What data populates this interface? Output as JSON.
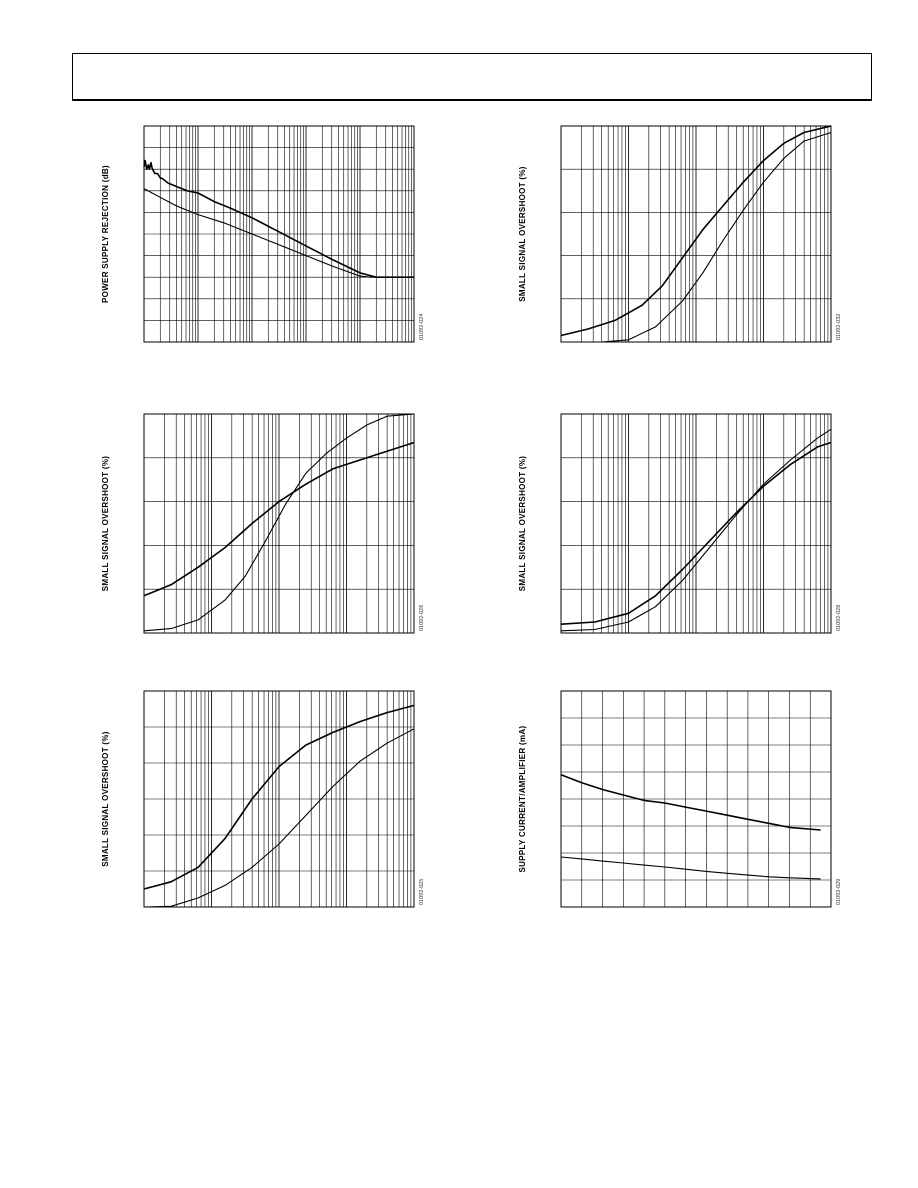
{
  "chart_data": [
    {
      "id": "psrr",
      "type": "line",
      "ylabel": "POWER SUPPLY REJECTION (dB)",
      "code": "01092-024",
      "x_scale": "log",
      "xlim": [
        0,
        5
      ],
      "ylim": [
        0,
        10
      ],
      "grid": true,
      "series": [
        {
          "x": [
            0,
            0.02,
            0.05,
            0.08,
            0.1,
            0.13,
            0.15,
            0.18,
            0.2,
            0.25,
            0.3,
            0.35,
            0.4,
            0.45,
            0.5,
            0.6,
            0.7,
            0.8,
            1.0,
            1.3,
            1.6,
            2.0,
            2.5,
            3.0,
            3.5,
            4.0,
            4.3,
            4.6,
            5.0
          ],
          "y": [
            8.1,
            8.4,
            8.0,
            8.2,
            8.0,
            8.3,
            8.05,
            7.9,
            7.8,
            7.8,
            7.6,
            7.55,
            7.45,
            7.35,
            7.3,
            7.2,
            7.1,
            7.0,
            6.9,
            6.5,
            6.2,
            5.75,
            5.1,
            4.45,
            3.8,
            3.2,
            3.0,
            3.0,
            3.0
          ]
        },
        {
          "x": [
            0,
            0.3,
            0.6,
            1.0,
            1.5,
            2.0,
            2.5,
            3.0,
            3.5,
            4.0,
            4.2,
            4.5,
            5.0
          ],
          "y": [
            7.1,
            6.7,
            6.3,
            5.9,
            5.5,
            5.0,
            4.5,
            4.0,
            3.5,
            3.05,
            3.0,
            3.0,
            3.0
          ]
        }
      ]
    },
    {
      "id": "overshoot-1",
      "type": "line",
      "ylabel": "SMALL SIGNAL OVERSHOOT (%)",
      "code": "01092-032",
      "x_scale": "log",
      "xlim": [
        0,
        4
      ],
      "ylim": [
        0,
        5
      ],
      "grid": true,
      "series": [
        {
          "x": [
            0,
            0.4,
            0.8,
            1.2,
            1.5,
            1.8,
            2.1,
            2.4,
            2.7,
            3.0,
            3.3,
            3.6,
            4.0
          ],
          "y": [
            0.15,
            0.3,
            0.5,
            0.85,
            1.3,
            1.95,
            2.6,
            3.15,
            3.7,
            4.2,
            4.6,
            4.85,
            5.0
          ]
        },
        {
          "x": [
            0,
            0.6,
            1.0,
            1.4,
            1.8,
            2.1,
            2.4,
            2.7,
            3.0,
            3.3,
            3.6,
            4.0
          ],
          "y": [
            0,
            0.0,
            0.05,
            0.35,
            0.95,
            1.6,
            2.35,
            3.05,
            3.7,
            4.25,
            4.65,
            4.85
          ]
        }
      ]
    },
    {
      "id": "overshoot-2",
      "type": "line",
      "ylabel": "SMALL SIGNAL OVERSHOOT (%)",
      "code": "01092-026",
      "x_scale": "log",
      "xlim": [
        0,
        4
      ],
      "ylim": [
        0,
        5
      ],
      "grid": true,
      "series": [
        {
          "x": [
            0,
            0.4,
            0.8,
            1.2,
            1.6,
            2.0,
            2.4,
            2.8,
            3.2,
            3.6,
            4.0
          ],
          "y": [
            0.85,
            1.1,
            1.5,
            1.95,
            2.5,
            3.0,
            3.4,
            3.75,
            3.95,
            4.15,
            4.35
          ]
        },
        {
          "x": [
            0,
            0.4,
            0.8,
            1.2,
            1.5,
            1.8,
            2.1,
            2.4,
            2.7,
            3.0,
            3.3,
            3.6,
            4.0
          ],
          "y": [
            0.05,
            0.1,
            0.3,
            0.75,
            1.3,
            2.1,
            2.95,
            3.65,
            4.1,
            4.45,
            4.75,
            4.95,
            5.0
          ]
        }
      ]
    },
    {
      "id": "overshoot-3",
      "type": "line",
      "ylabel": "SMALL SIGNAL OVERSHOOT (%)",
      "code": "01092-028",
      "x_scale": "log",
      "xlim": [
        0,
        4
      ],
      "ylim": [
        0,
        5
      ],
      "grid": true,
      "series": [
        {
          "x": [
            0,
            0.5,
            1.0,
            1.4,
            1.8,
            2.2,
            2.6,
            3.0,
            3.4,
            3.8,
            4.0
          ],
          "y": [
            0.2,
            0.25,
            0.45,
            0.85,
            1.45,
            2.1,
            2.75,
            3.35,
            3.85,
            4.25,
            4.35
          ]
        },
        {
          "x": [
            0,
            0.5,
            1.0,
            1.4,
            1.8,
            2.2,
            2.6,
            3.0,
            3.4,
            3.8,
            4.0
          ],
          "y": [
            0.05,
            0.08,
            0.25,
            0.6,
            1.2,
            1.95,
            2.7,
            3.4,
            3.95,
            4.45,
            4.65
          ]
        }
      ]
    },
    {
      "id": "overshoot-4",
      "type": "line",
      "ylabel": "SMALL SIGNAL OVERSHOOT (%)",
      "code": "01092-025",
      "x_scale": "log",
      "xlim": [
        0,
        4
      ],
      "ylim": [
        0,
        6
      ],
      "grid": true,
      "series": [
        {
          "x": [
            0,
            0.4,
            0.8,
            1.2,
            1.6,
            2.0,
            2.4,
            2.8,
            3.2,
            3.6,
            4.0
          ],
          "y": [
            0.5,
            0.7,
            1.1,
            1.9,
            3.0,
            3.9,
            4.5,
            4.85,
            5.15,
            5.4,
            5.6
          ]
        },
        {
          "x": [
            0,
            0.4,
            0.8,
            1.2,
            1.6,
            2.0,
            2.4,
            2.8,
            3.2,
            3.6,
            4.0
          ],
          "y": [
            0.0,
            0.02,
            0.25,
            0.6,
            1.1,
            1.75,
            2.55,
            3.35,
            4.05,
            4.55,
            4.95
          ]
        }
      ]
    },
    {
      "id": "supply-current",
      "type": "line",
      "ylabel": "SUPPLY CURRENT/AMPLIFIER (mA)",
      "code": "01092-029",
      "x_scale": "linear",
      "xlim": [
        0,
        13
      ],
      "ylim": [
        0,
        8
      ],
      "grid": true,
      "series": [
        {
          "x": [
            0,
            1,
            2,
            3,
            4,
            5,
            6,
            7,
            8,
            9,
            10,
            11,
            12.5
          ],
          "y": [
            4.9,
            4.6,
            4.35,
            4.15,
            3.95,
            3.85,
            3.7,
            3.55,
            3.4,
            3.25,
            3.1,
            2.95,
            2.85
          ]
        },
        {
          "x": [
            0,
            1,
            2,
            3,
            4,
            5,
            6,
            7,
            8,
            9,
            10,
            11,
            12.5
          ],
          "y": [
            1.85,
            1.78,
            1.7,
            1.63,
            1.55,
            1.48,
            1.4,
            1.32,
            1.25,
            1.18,
            1.12,
            1.08,
            1.04
          ]
        }
      ]
    }
  ]
}
